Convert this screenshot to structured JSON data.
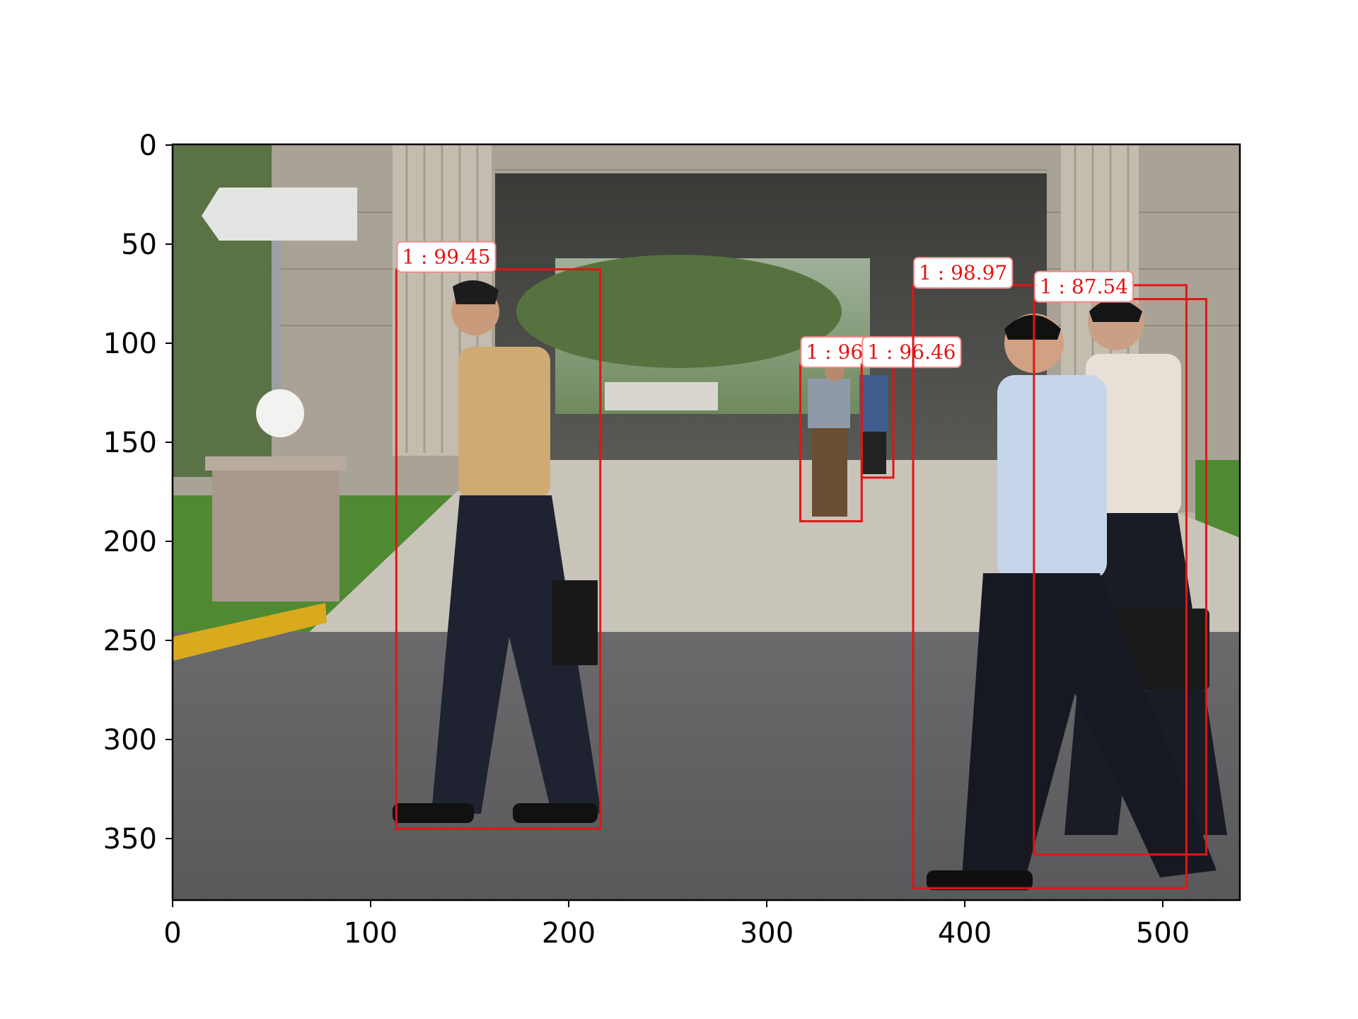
{
  "figure": {
    "x_ticks": [
      "0",
      "100",
      "200",
      "300",
      "400",
      "500"
    ],
    "y_ticks": [
      "0",
      "50",
      "100",
      "150",
      "200",
      "250",
      "300",
      "350"
    ],
    "image_width": 539,
    "image_height": 381
  },
  "detections": [
    {
      "label": "1 : 99.45",
      "x0": 113,
      "y0": 63,
      "x1": 216,
      "y1": 345
    },
    {
      "label": "1 : 96",
      "x0": 317,
      "y0": 111,
      "x1": 348,
      "y1": 190
    },
    {
      "label": "1 : 96.46",
      "x0": 348,
      "y0": 111,
      "x1": 364,
      "y1": 168
    },
    {
      "label": "1 : 98.97",
      "x0": 374,
      "y0": 71,
      "x1": 512,
      "y1": 375
    },
    {
      "label": "1 : 87.54",
      "x0": 435,
      "y0": 78,
      "x1": 522,
      "y1": 358
    }
  ],
  "colors": {
    "box": "#e41414",
    "label_text": "#e41414",
    "label_bg": "#ffffff"
  }
}
